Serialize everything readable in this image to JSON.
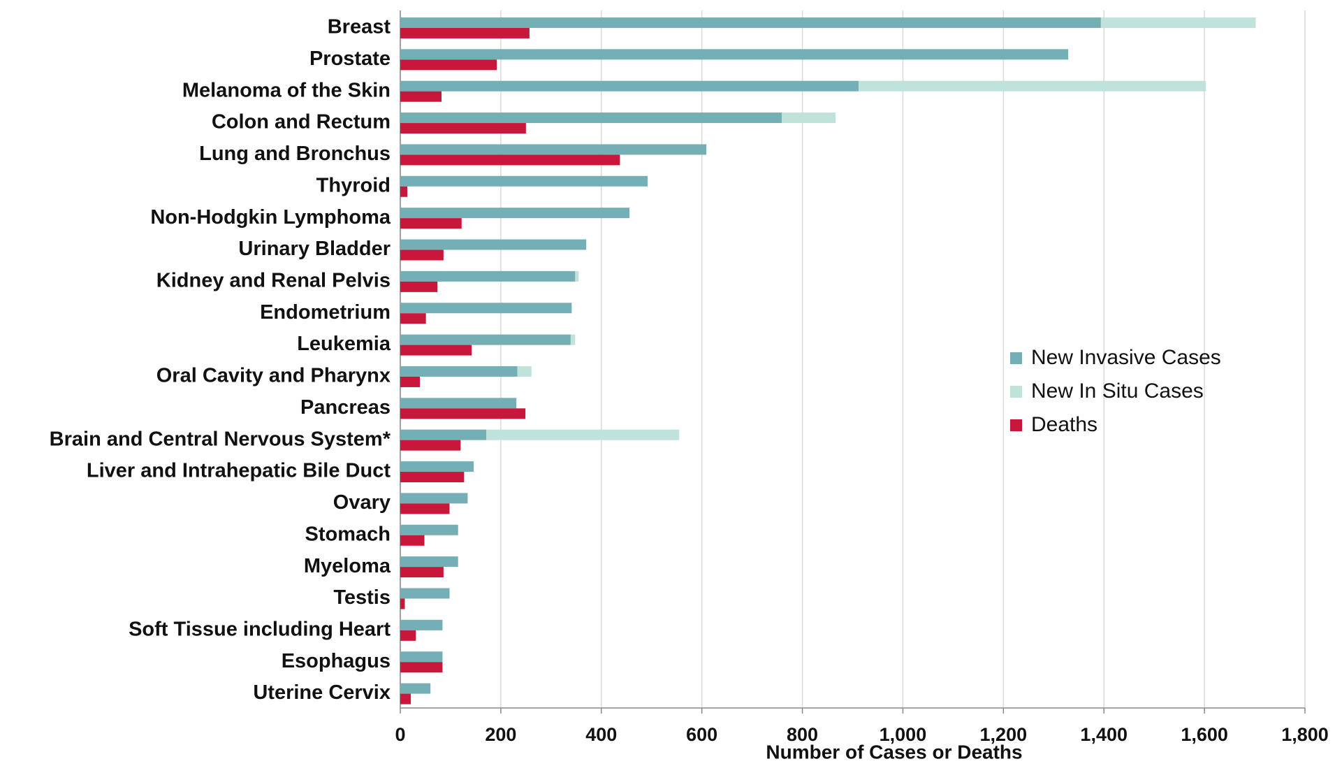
{
  "chart_data": {
    "type": "bar",
    "orientation": "horizontal",
    "x_label": "Number of Cases or Deaths",
    "categories": [
      "Breast",
      "Prostate",
      "Melanoma of the Skin",
      "Colon and Rectum",
      "Lung and Bronchus",
      "Thyroid",
      "Non-Hodgkin Lymphoma",
      "Urinary Bladder",
      "Kidney and Renal Pelvis",
      "Endometrium",
      "Leukemia",
      "Oral Cavity and Pharynx",
      "Pancreas",
      "Brain and Central Nervous System*",
      "Liver and Intrahepatic Bile Duct",
      "Ovary",
      "Stomach",
      "Myeloma",
      "Testis",
      "Soft Tissue including Heart",
      "Esophagus",
      "Uterine Cervix"
    ],
    "series": [
      {
        "name": "New Invasive Cases",
        "color": "#74afb6",
        "stack": "cases",
        "values": [
          1394,
          1329,
          912,
          759,
          609,
          492,
          456,
          370,
          348,
          341,
          339,
          233,
          231,
          171,
          146,
          134,
          115,
          115,
          98,
          84,
          84,
          60
        ]
      },
      {
        "name": "New In Situ Cases",
        "color": "#bfe3da",
        "stack": "cases",
        "values": [
          308,
          null,
          691,
          107,
          null,
          null,
          null,
          null,
          7,
          null,
          9,
          28,
          null,
          384,
          null,
          null,
          null,
          null,
          null,
          null,
          null,
          null
        ]
      },
      {
        "name": "Deaths",
        "color": "#c8173a",
        "stack": "deaths",
        "values": [
          257,
          192,
          82,
          250,
          437,
          14,
          122,
          86,
          74,
          51,
          142,
          39,
          249,
          120,
          127,
          98,
          48,
          86,
          9,
          31,
          84,
          21
        ]
      }
    ],
    "xlim": [
      0,
      1800
    ],
    "xticks": [
      0,
      200,
      400,
      600,
      800,
      {
        "value": 1000,
        "label": "1,000"
      },
      {
        "value": 1200,
        "label": "1,200"
      },
      {
        "value": 1400,
        "label": "1,400"
      },
      {
        "value": 1600,
        "label": "1,600"
      },
      {
        "value": 1800,
        "label": "1,800"
      }
    ],
    "grid": true,
    "legend": "right"
  }
}
